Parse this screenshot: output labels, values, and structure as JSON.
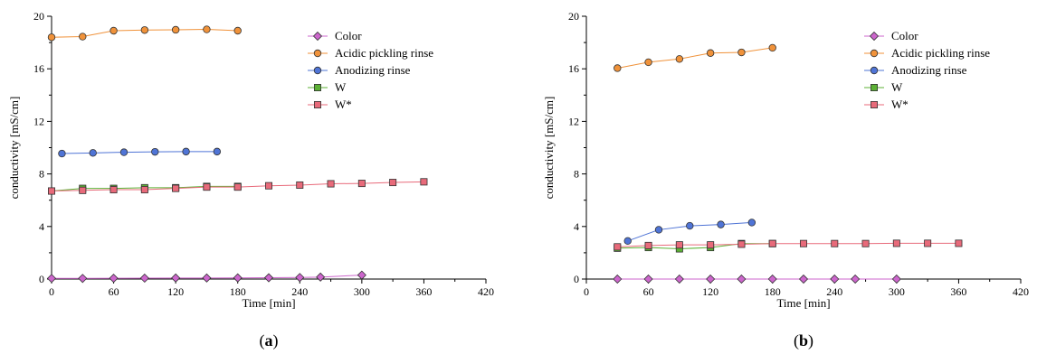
{
  "chart_data": [
    {
      "type": "line",
      "panel_label": "a",
      "xlabel": "Time [min]",
      "ylabel": "conductivity [mS/cm]",
      "xlim": [
        0,
        420
      ],
      "ylim": [
        0,
        20
      ],
      "xticks": [
        0,
        60,
        120,
        180,
        240,
        300,
        360,
        420
      ],
      "yticks": [
        0,
        4,
        8,
        12,
        16,
        20
      ],
      "grid": false,
      "legend_position": "top-right",
      "series": [
        {
          "name": "Color",
          "marker": "diamond",
          "color": "#cc66cc",
          "x": [
            0,
            30,
            60,
            90,
            120,
            150,
            180,
            210,
            240,
            260,
            300
          ],
          "y": [
            0.05,
            0.05,
            0.06,
            0.07,
            0.08,
            0.08,
            0.09,
            0.1,
            0.12,
            0.15,
            0.3
          ]
        },
        {
          "name": "Acidic pickling rinse",
          "marker": "circle",
          "color": "#f0923a",
          "x": [
            0,
            30,
            60,
            90,
            120,
            150,
            180
          ],
          "y": [
            18.4,
            18.45,
            18.9,
            18.95,
            18.97,
            19.0,
            18.9
          ]
        },
        {
          "name": "Anodizing rinse",
          "marker": "circle",
          "color": "#4f74d6",
          "x": [
            10,
            40,
            70,
            100,
            130,
            160
          ],
          "y": [
            9.55,
            9.6,
            9.65,
            9.68,
            9.7,
            9.7
          ]
        },
        {
          "name": "W",
          "marker": "square",
          "color": "#5cb135",
          "x": [
            0,
            30,
            60,
            90,
            120,
            150,
            180
          ],
          "y": [
            6.7,
            6.9,
            6.9,
            6.95,
            6.95,
            7.05,
            7.05
          ]
        },
        {
          "name": "W*",
          "marker": "square",
          "color": "#e86a7a",
          "x": [
            0,
            30,
            60,
            90,
            120,
            150,
            180,
            210,
            240,
            270,
            300,
            330,
            360
          ],
          "y": [
            6.7,
            6.75,
            6.8,
            6.8,
            6.9,
            7.0,
            7.0,
            7.1,
            7.15,
            7.25,
            7.28,
            7.35,
            7.4
          ]
        }
      ]
    },
    {
      "type": "line",
      "panel_label": "b",
      "xlabel": "Time [min]",
      "ylabel": "conductivity [mS/cm]",
      "xlim": [
        0,
        420
      ],
      "ylim": [
        0,
        20
      ],
      "xticks": [
        0,
        60,
        120,
        180,
        240,
        300,
        360,
        420
      ],
      "yticks": [
        0,
        4,
        8,
        12,
        16,
        20
      ],
      "grid": false,
      "legend_position": "top-right",
      "series": [
        {
          "name": "Color",
          "marker": "diamond",
          "color": "#cc66cc",
          "x": [
            30,
            60,
            90,
            120,
            150,
            180,
            210,
            240,
            260,
            300
          ],
          "y": [
            0.0,
            0.0,
            0.0,
            0.0,
            0.0,
            0.0,
            0.0,
            0.0,
            0.0,
            0.0
          ]
        },
        {
          "name": "Acidic pickling rinse",
          "marker": "circle",
          "color": "#f0923a",
          "x": [
            30,
            60,
            90,
            120,
            150,
            180
          ],
          "y": [
            16.05,
            16.5,
            16.75,
            17.2,
            17.25,
            17.6
          ]
        },
        {
          "name": "Anodizing rinse",
          "marker": "circle",
          "color": "#4f74d6",
          "x": [
            40,
            70,
            100,
            130,
            160
          ],
          "y": [
            2.9,
            3.75,
            4.05,
            4.15,
            4.3
          ]
        },
        {
          "name": "W",
          "marker": "square",
          "color": "#5cb135",
          "x": [
            30,
            60,
            90,
            120,
            150,
            180
          ],
          "y": [
            2.35,
            2.4,
            2.3,
            2.4,
            2.7,
            2.7
          ]
        },
        {
          "name": "W*",
          "marker": "square",
          "color": "#e86a7a",
          "x": [
            30,
            60,
            90,
            120,
            150,
            180,
            210,
            240,
            270,
            300,
            330,
            360
          ],
          "y": [
            2.45,
            2.55,
            2.6,
            2.6,
            2.65,
            2.7,
            2.7,
            2.7,
            2.7,
            2.72,
            2.72,
            2.72
          ]
        }
      ]
    }
  ]
}
